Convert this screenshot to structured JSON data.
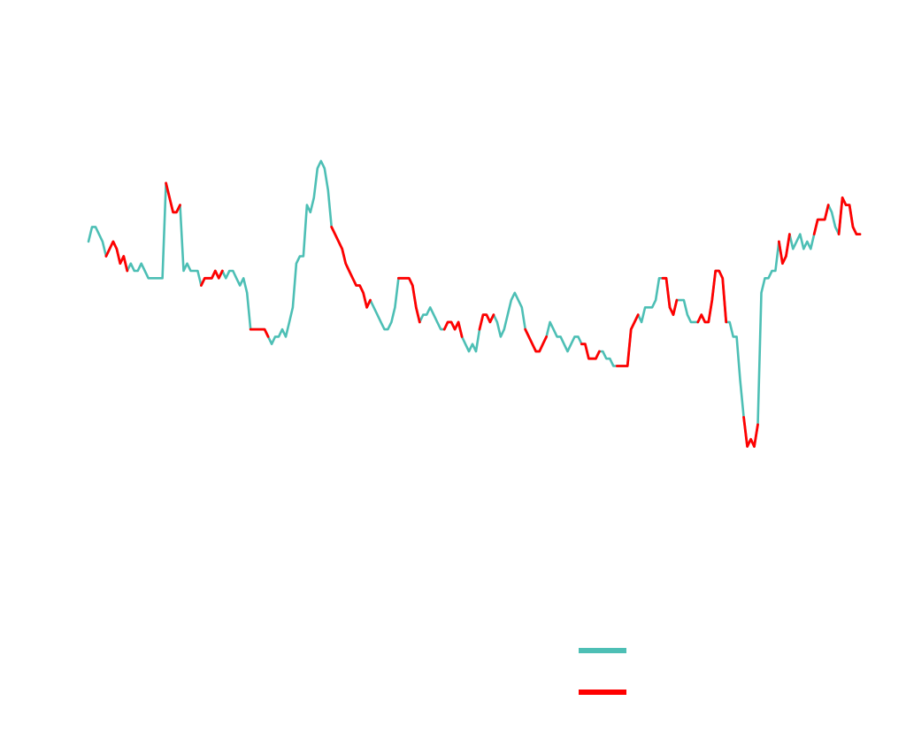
{
  "chart_data": {
    "type": "line",
    "title": "",
    "xlabel": "",
    "ylabel": "",
    "grid": false,
    "legend_placement": "bottom-right",
    "x_count": 220,
    "ylim": [
      0,
      100
    ],
    "series": [
      {
        "name": "",
        "color": "#4DBFB5",
        "role": "base",
        "values": [
          67,
          69,
          69,
          68,
          67,
          65,
          66,
          67,
          66,
          64,
          65,
          63,
          64,
          63,
          63,
          64,
          63,
          62,
          62,
          62,
          62,
          62,
          75,
          73,
          71,
          71,
          72,
          63,
          64,
          63,
          63,
          63,
          61,
          62,
          62,
          62,
          63,
          62,
          63,
          62,
          63,
          63,
          62,
          61,
          62,
          60,
          55,
          55,
          55,
          55,
          55,
          54,
          53,
          54,
          54,
          55,
          54,
          56,
          58,
          64,
          65,
          65,
          72,
          71,
          73,
          77,
          78,
          77,
          74,
          69,
          68,
          67,
          66,
          64,
          63,
          62,
          61,
          61,
          60,
          58,
          59,
          58,
          57,
          56,
          55,
          55,
          56,
          58,
          62,
          62,
          62,
          62,
          61,
          58,
          56,
          57,
          57,
          58,
          57,
          56,
          55,
          55,
          56,
          56,
          55,
          56,
          54,
          53,
          52,
          53,
          52,
          55,
          57,
          57,
          56,
          57,
          56,
          54,
          55,
          57,
          59,
          60,
          59,
          58,
          55,
          54,
          53,
          52,
          52,
          53,
          54,
          56,
          55,
          54,
          54,
          53,
          52,
          53,
          54,
          54,
          53,
          53,
          51,
          51,
          51,
          52,
          52,
          51,
          51,
          50,
          50,
          50,
          50,
          50,
          55,
          56,
          57,
          56,
          58,
          58,
          58,
          59,
          62,
          62,
          62,
          58,
          57,
          59,
          59,
          59,
          57,
          56,
          56,
          56,
          57,
          56,
          56,
          59,
          63,
          63,
          62,
          56,
          56,
          54,
          54,
          48,
          43,
          39,
          40,
          39,
          42,
          60,
          62,
          62,
          63,
          63,
          67,
          64,
          65,
          68,
          66,
          67,
          68,
          66,
          67,
          66,
          68,
          70,
          70,
          70,
          72,
          71,
          69,
          68,
          73,
          72,
          72,
          69,
          68,
          68
        ]
      },
      {
        "name": "",
        "color": "#FF0000",
        "role": "overlay",
        "segments": [
          [
            5,
            11
          ],
          [
            22,
            26
          ],
          [
            32,
            38
          ],
          [
            46,
            51
          ],
          [
            69,
            80
          ],
          [
            88,
            94
          ],
          [
            101,
            106
          ],
          [
            111,
            115
          ],
          [
            124,
            130
          ],
          [
            140,
            145
          ],
          [
            150,
            156
          ],
          [
            163,
            167
          ],
          [
            173,
            181
          ],
          [
            186,
            190
          ],
          [
            196,
            199
          ],
          [
            206,
            210
          ],
          [
            213,
            219
          ]
        ]
      }
    ]
  }
}
